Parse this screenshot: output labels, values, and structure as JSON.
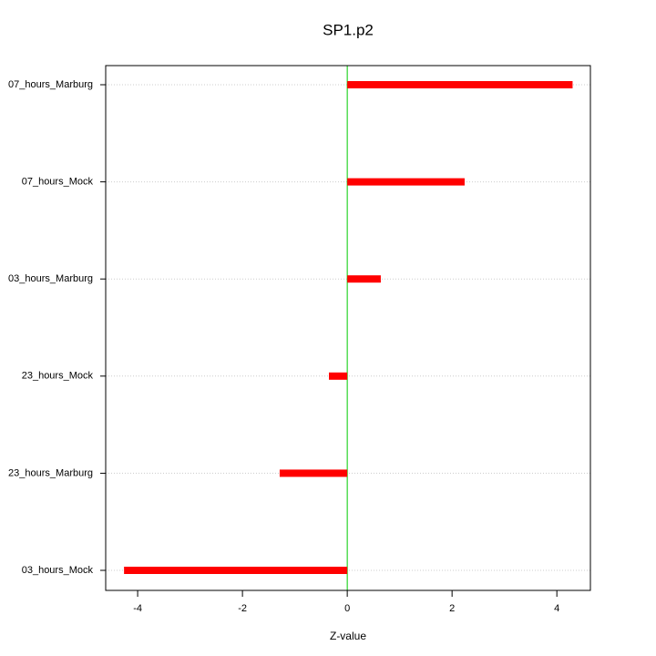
{
  "chart_data": {
    "type": "bar",
    "orientation": "horizontal",
    "title": "SP1.p2",
    "x_label": "Z-value",
    "categories": [
      "07_hours_Marburg",
      "07_hours_Mock",
      "03_hours_Marburg",
      "23_hours_Mock",
      "23_hours_Marburg",
      "03_hours_Mock"
    ],
    "values": [
      4.3,
      2.24,
      0.64,
      -0.35,
      -1.29,
      -4.26
    ],
    "color": "#ff0000",
    "zero_line_color": "#00cc00",
    "xlim": [
      -4.61,
      4.64
    ],
    "xticks": [
      -4,
      -2,
      0,
      2,
      4
    ],
    "grid": true
  }
}
